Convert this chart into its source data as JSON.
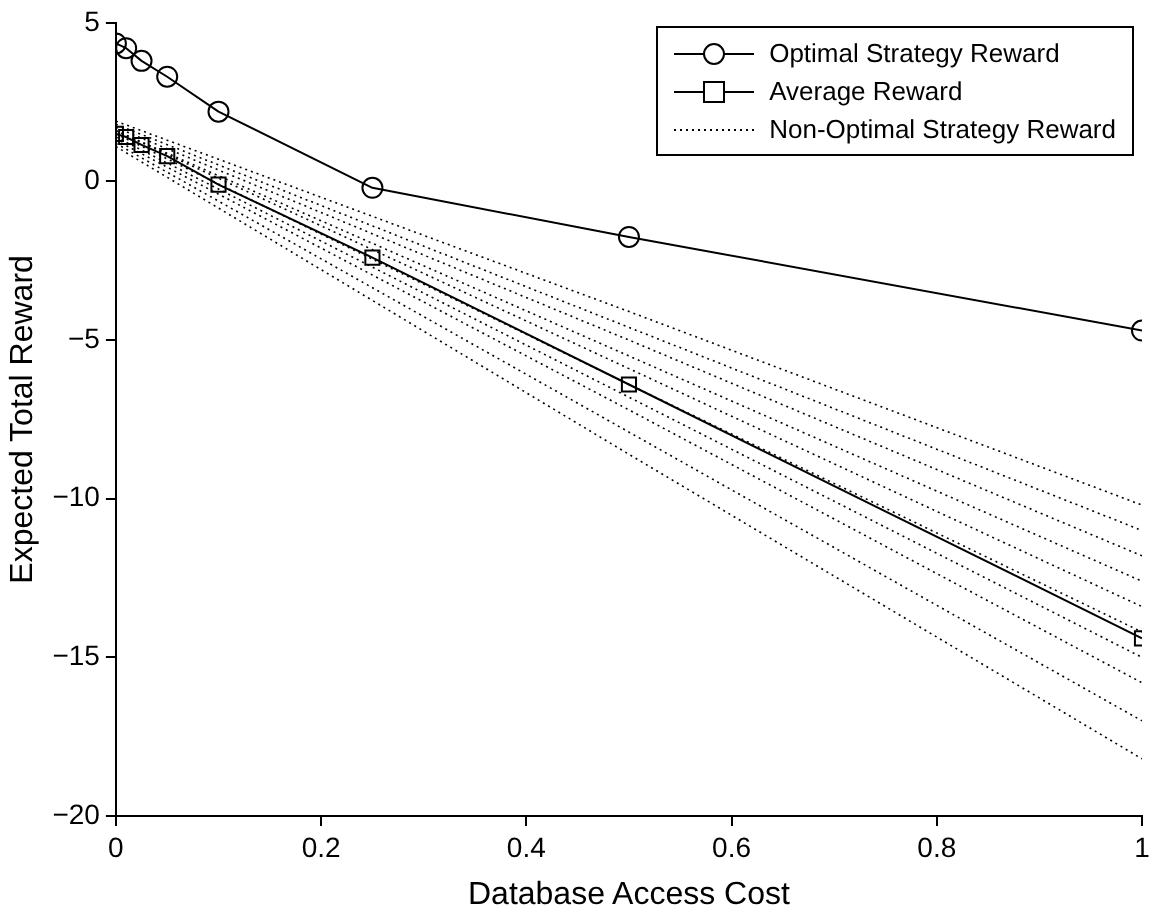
{
  "chart_data": {
    "type": "line",
    "xlabel": "Database Access Cost",
    "ylabel": "Expected Total Reward",
    "xlim": [
      0,
      1
    ],
    "xticks": [
      0,
      0.2,
      0.4,
      0.6,
      0.8,
      1
    ],
    "ylim": [
      -20,
      5
    ],
    "yticks": [
      -20,
      -15,
      -10,
      -5,
      0,
      5
    ],
    "grid": false,
    "legend": "top right",
    "series": [
      {
        "name": "Optimal Strategy Reward",
        "color": "#000000",
        "marker": "circle",
        "line_style": "solid",
        "x": [
          0,
          0.01,
          0.025,
          0.05,
          0.1,
          0.25,
          0.5,
          1
        ],
        "values": [
          4.35,
          4.2,
          3.8,
          3.3,
          2.2,
          -0.2,
          -1.75,
          -4.7
        ]
      },
      {
        "name": "Average Reward",
        "color": "#000000",
        "marker": "square",
        "line_style": "solid",
        "x": [
          0,
          0.01,
          0.025,
          0.05,
          0.1,
          0.25,
          0.5,
          1
        ],
        "values": [
          1.5,
          1.4,
          1.15,
          0.8,
          -0.1,
          -2.4,
          -6.4,
          -14.4
        ]
      },
      {
        "name": "Non-Optimal Strategy Reward",
        "color": "#000000",
        "marker": "none",
        "line_style": "dotted",
        "x": [
          0,
          0.5,
          1
        ],
        "values": [
          1.9,
          -4.1,
          -10.2
        ]
      },
      {
        "color": "#000000",
        "marker": "none",
        "line_style": "dotted",
        "x": [
          0,
          0.5,
          1
        ],
        "values": [
          1.8,
          -4.6,
          -11
        ]
      },
      {
        "color": "#000000",
        "marker": "none",
        "line_style": "dotted",
        "x": [
          0,
          0.5,
          1
        ],
        "values": [
          1.7,
          -5.0,
          -11.8
        ]
      },
      {
        "color": "#000000",
        "marker": "none",
        "line_style": "dotted",
        "x": [
          0,
          0.5,
          1
        ],
        "values": [
          1.6,
          -5.5,
          -12.6
        ]
      },
      {
        "color": "#000000",
        "marker": "none",
        "line_style": "dotted",
        "x": [
          0,
          0.5,
          1
        ],
        "values": [
          1.6,
          -5.9,
          -13.4
        ]
      },
      {
        "color": "#000000",
        "marker": "none",
        "line_style": "dotted",
        "x": [
          0,
          0.5,
          1
        ],
        "values": [
          1.5,
          -6.4,
          -14.2
        ]
      },
      {
        "color": "#000000",
        "marker": "none",
        "line_style": "dotted",
        "x": [
          0,
          0.5,
          1
        ],
        "values": [
          1.4,
          -6.8,
          -15
        ]
      },
      {
        "color": "#000000",
        "marker": "none",
        "line_style": "dotted",
        "x": [
          0,
          0.5,
          1
        ],
        "values": [
          1.3,
          -7.2,
          -15.8
        ]
      },
      {
        "color": "#000000",
        "marker": "none",
        "line_style": "dotted",
        "x": [
          0,
          0.5,
          1
        ],
        "values": [
          1.2,
          -7.9,
          -17
        ]
      },
      {
        "color": "#000000",
        "marker": "none",
        "line_style": "dotted",
        "x": [
          0,
          0.5,
          1
        ],
        "values": [
          1.1,
          -8.6,
          -18.2
        ]
      }
    ]
  }
}
